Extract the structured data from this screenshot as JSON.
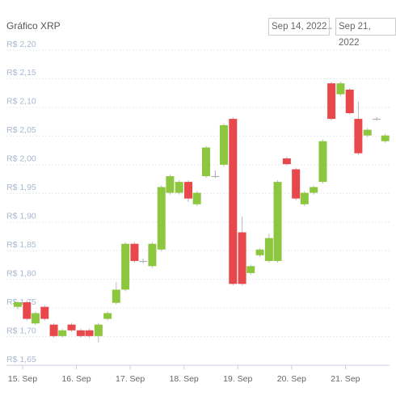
{
  "chart_data": {
    "type": "candlestick",
    "title": "Gráfico XRP",
    "date_range": {
      "start": "Sep 14, 2022",
      "separator": "→",
      "end": "Sep 21, 2022"
    },
    "x": [
      14.91,
      15.08,
      15.24,
      15.41,
      15.58,
      15.74,
      15.91,
      16.08,
      16.24,
      16.41,
      16.58,
      16.74,
      16.91,
      17.08,
      17.24,
      17.41,
      17.58,
      17.74,
      17.91,
      18.08,
      18.24,
      18.41,
      18.58,
      18.74,
      18.91,
      19.08,
      19.24,
      19.41,
      19.58,
      19.74,
      19.91,
      20.08,
      20.24,
      20.41,
      20.58,
      20.74,
      20.91,
      21.08,
      21.24,
      21.41,
      21.58,
      21.74
    ],
    "open": [
      1.752,
      1.76,
      1.723,
      1.752,
      1.721,
      1.701,
      1.721,
      1.711,
      1.711,
      1.701,
      1.731,
      1.759,
      1.782,
      1.862,
      1.832,
      1.823,
      1.852,
      1.951,
      1.951,
      1.97,
      1.931,
      1.98,
      1.98,
      2.0,
      2.08,
      1.882,
      1.811,
      1.842,
      1.832,
      1.832,
      2.011,
      1.992,
      1.931,
      1.951,
      1.97,
      2.142,
      2.123,
      2.131,
      2.08,
      2.051,
      2.08,
      2.041
    ],
    "high": [
      1.762,
      1.763,
      1.744,
      1.755,
      1.724,
      1.714,
      1.724,
      1.714,
      1.714,
      1.724,
      1.744,
      1.795,
      1.865,
      1.865,
      1.836,
      1.865,
      1.964,
      1.983,
      1.973,
      1.973,
      1.954,
      2.033,
      1.99,
      2.072,
      2.083,
      1.91,
      1.826,
      1.855,
      1.88,
      1.973,
      2.014,
      1.995,
      1.954,
      1.964,
      2.044,
      2.145,
      2.145,
      2.134,
      2.11,
      2.064,
      2.083,
      2.054
    ],
    "low": [
      1.748,
      1.728,
      1.72,
      1.728,
      1.698,
      1.698,
      1.708,
      1.698,
      1.698,
      1.69,
      1.728,
      1.756,
      1.779,
      1.829,
      1.828,
      1.82,
      1.849,
      1.948,
      1.948,
      1.935,
      1.928,
      1.977,
      1.977,
      1.997,
      1.789,
      1.789,
      1.808,
      1.839,
      1.829,
      1.829,
      1.998,
      1.938,
      1.928,
      1.948,
      1.967,
      2.077,
      2.12,
      2.087,
      2.017,
      2.048,
      2.077,
      2.038
    ],
    "close": [
      1.76,
      1.731,
      1.741,
      1.731,
      1.701,
      1.711,
      1.711,
      1.701,
      1.701,
      1.721,
      1.741,
      1.782,
      1.862,
      1.832,
      1.832,
      1.862,
      1.961,
      1.98,
      1.97,
      1.941,
      1.951,
      2.03,
      1.98,
      2.069,
      1.792,
      1.792,
      1.823,
      1.852,
      1.872,
      1.97,
      2.001,
      1.941,
      1.951,
      1.961,
      2.041,
      2.08,
      2.142,
      2.09,
      2.02,
      2.061,
      2.08,
      2.051
    ],
    "up_color": "#8dc63f",
    "down_color": "#e8474b",
    "flat_color": "#aaaaaa",
    "xlim": [
      14.7,
      21.82
    ],
    "xticks": [
      {
        "value": 15,
        "label": "15. Sep"
      },
      {
        "value": 16,
        "label": "16. Sep"
      },
      {
        "value": 17,
        "label": "17. Sep"
      },
      {
        "value": 18,
        "label": "18. Sep"
      },
      {
        "value": 19,
        "label": "19. Sep"
      },
      {
        "value": 20,
        "label": "20. Sep"
      },
      {
        "value": 21,
        "label": "21. Sep"
      }
    ],
    "ylim": [
      1.65,
      2.2
    ],
    "yticks": [
      {
        "value": 1.65,
        "label": "R$ 1,65"
      },
      {
        "value": 1.7,
        "label": "R$ 1,70"
      },
      {
        "value": 1.75,
        "label": "R$ 1,75"
      },
      {
        "value": 1.8,
        "label": "R$ 1,80"
      },
      {
        "value": 1.85,
        "label": "R$ 1,85"
      },
      {
        "value": 1.9,
        "label": "R$ 1,90"
      },
      {
        "value": 1.95,
        "label": "R$ 1,95"
      },
      {
        "value": 2.0,
        "label": "R$ 2,00"
      },
      {
        "value": 2.05,
        "label": "R$ 2,05"
      },
      {
        "value": 2.1,
        "label": "R$ 2,10"
      },
      {
        "value": 2.15,
        "label": "R$ 2,15"
      },
      {
        "value": 2.2,
        "label": "R$ 2,20"
      }
    ],
    "grid": true
  }
}
